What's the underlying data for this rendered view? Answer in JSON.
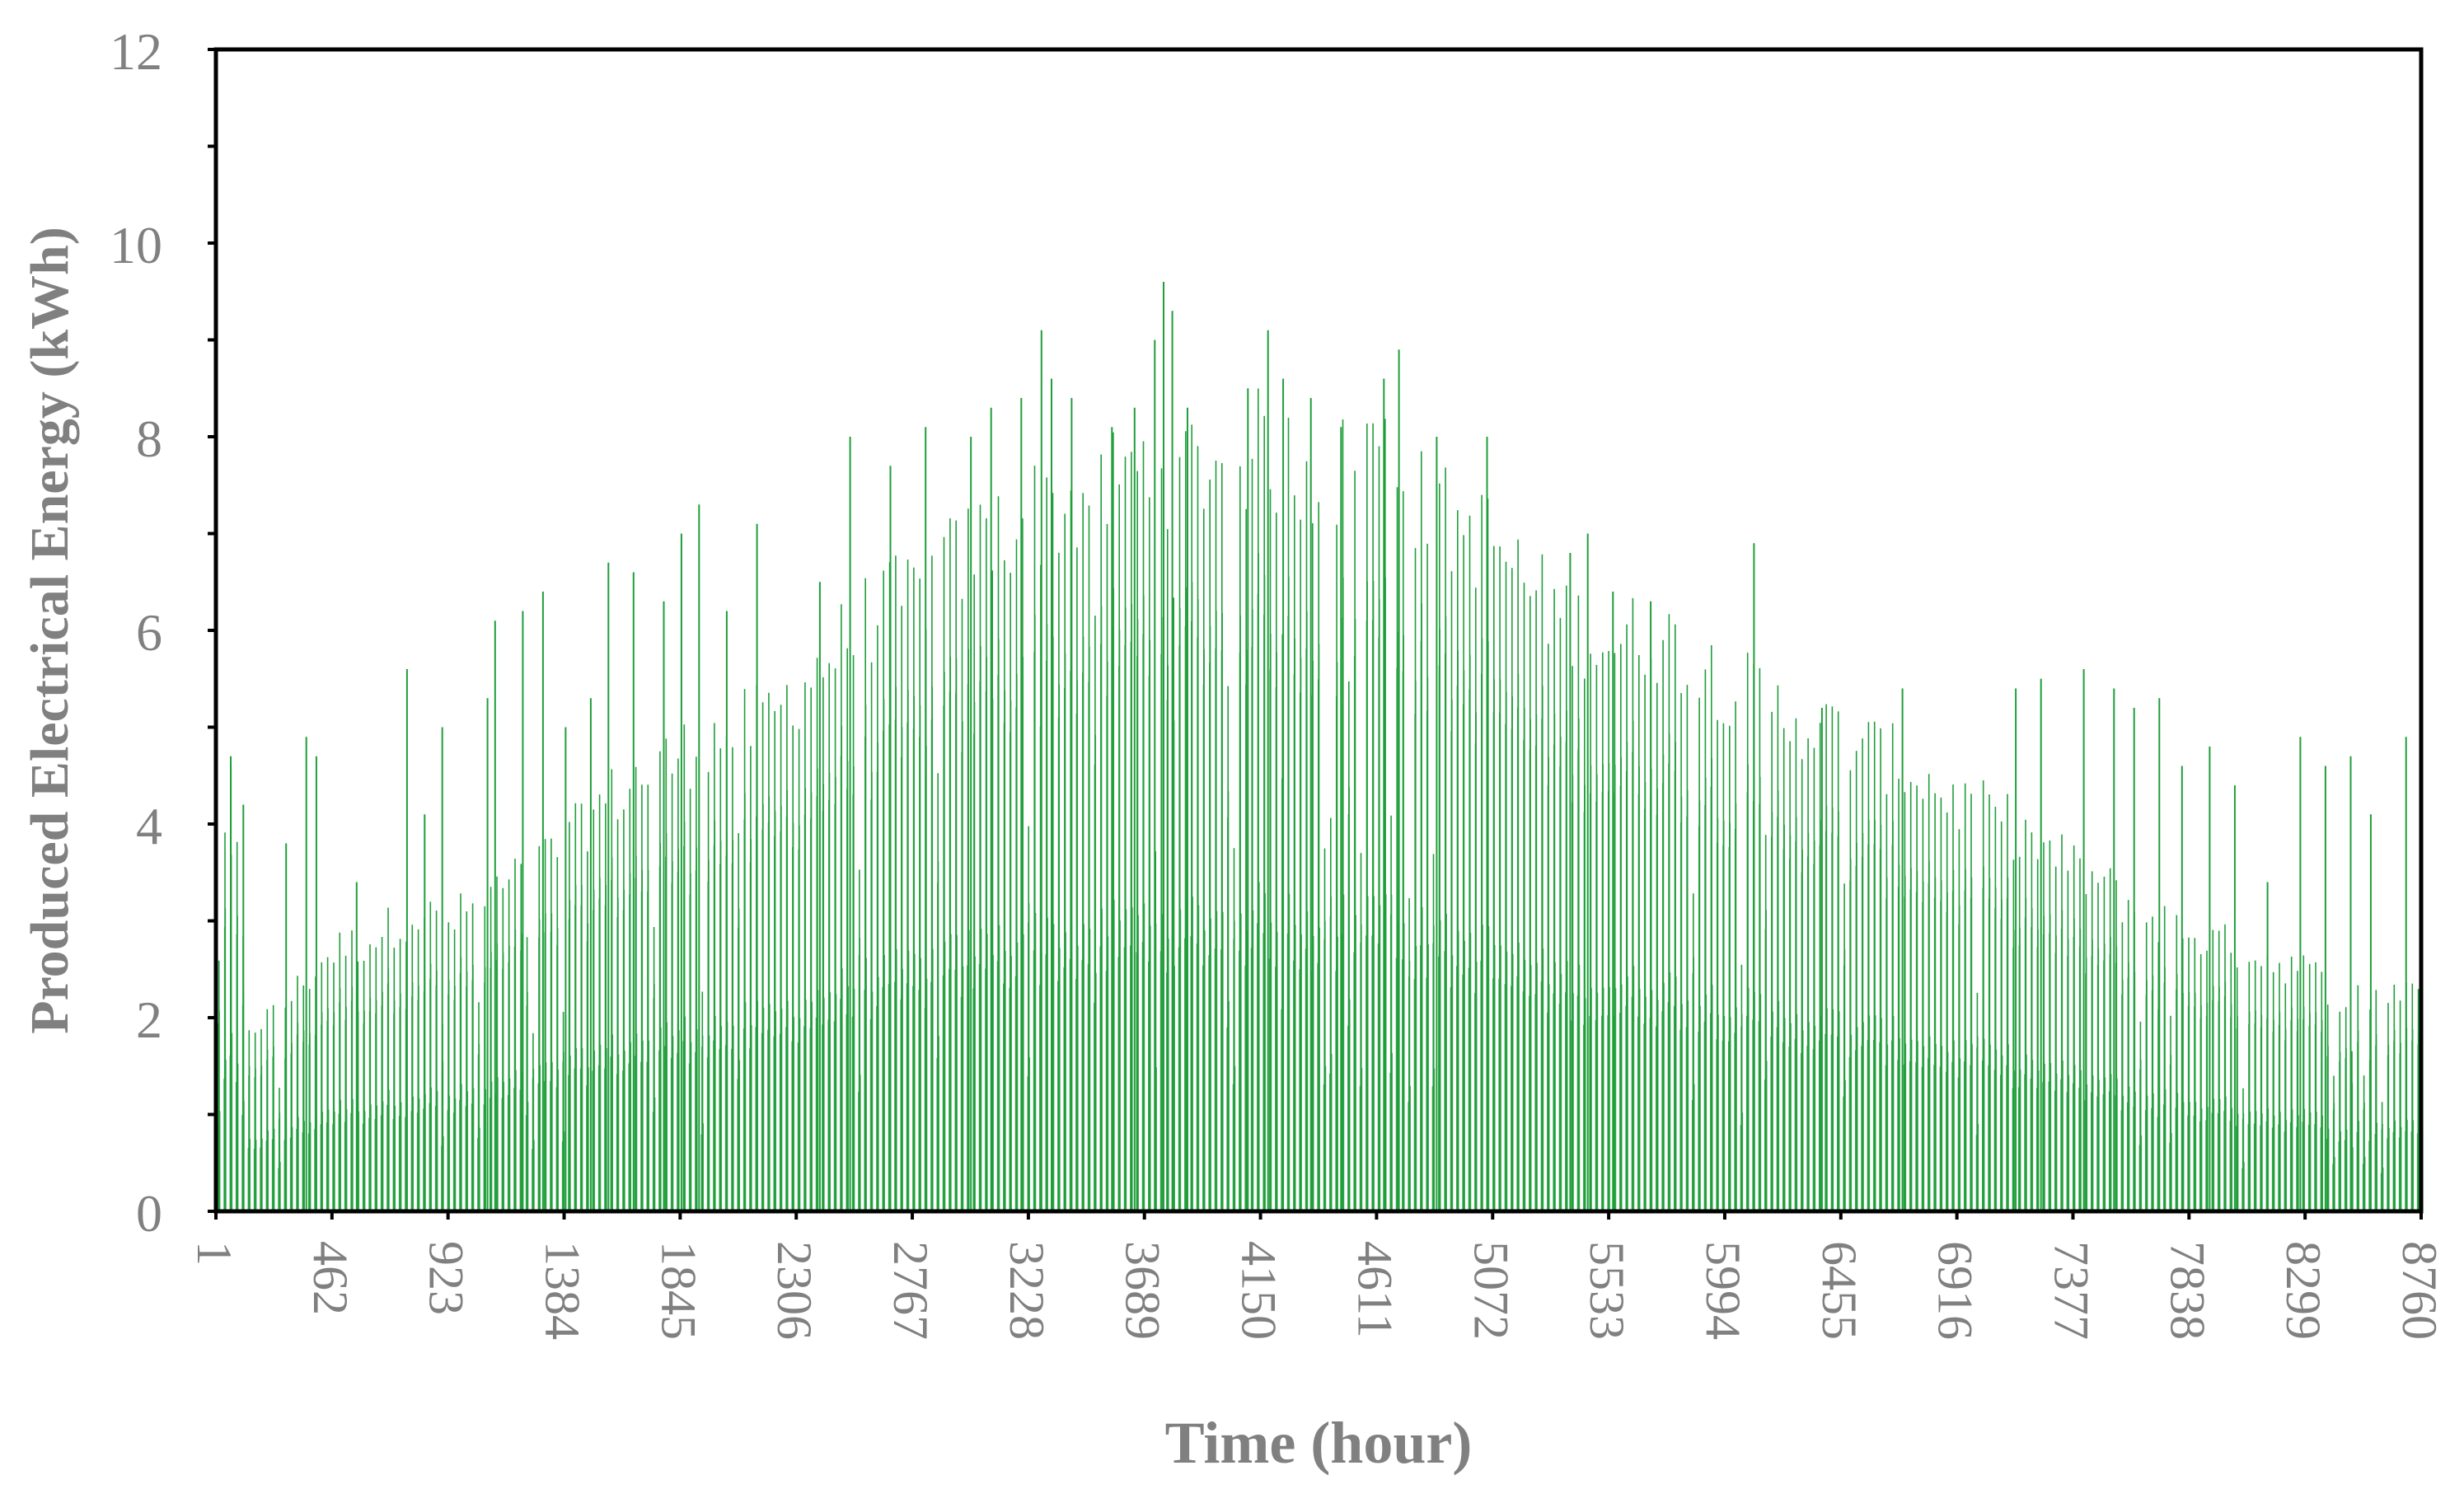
{
  "chart_data": {
    "type": "bar",
    "title": "",
    "xlabel": "Time (hour)",
    "ylabel": "Produced Electrical Energy (kWh)",
    "xlim": [
      1,
      8760
    ],
    "ylim": [
      0,
      12
    ],
    "x_ticks": [
      "1",
      "462",
      "923",
      "1384",
      "1845",
      "2306",
      "2767",
      "3228",
      "3689",
      "4150",
      "4611",
      "5072",
      "5533",
      "5994",
      "6455",
      "6916",
      "7377",
      "7838",
      "8299",
      "8760"
    ],
    "y_ticks": [
      "0",
      "2",
      "4",
      "6",
      "8",
      "10",
      "12"
    ],
    "grid": false,
    "legend": "none",
    "color": "#1f9e3a",
    "series": [
      {
        "daily_peak_envelope": {
          "x": [
            1,
            60,
            130,
            230,
            462,
            600,
            780,
            923,
            1050,
            1200,
            1384,
            1500,
            1700,
            1845,
            2000,
            2200,
            2306,
            2450,
            2600,
            2767,
            2900,
            3050,
            3228,
            3400,
            3550,
            3689,
            3850,
            4000,
            4150,
            4300,
            4450,
            4611,
            4750,
            4900,
            5072,
            5250,
            5400,
            5533,
            5700,
            5850,
            5994,
            6200,
            6455,
            6700,
            6916,
            7100,
            7250,
            7377,
            7500,
            7650,
            7838,
            8050,
            8299,
            8450,
            8600,
            8760
          ],
          "y": [
            2.3,
            4.7,
            2.0,
            2.1,
            2.8,
            2.9,
            3.2,
            3.1,
            3.3,
            3.6,
            3.9,
            4.3,
            4.7,
            4.9,
            5.1,
            5.3,
            5.6,
            6.0,
            6.4,
            6.6,
            6.9,
            7.2,
            7.5,
            7.6,
            7.8,
            8.0,
            8.0,
            8.1,
            8.2,
            8.0,
            7.9,
            8.3,
            7.7,
            7.4,
            7.2,
            6.6,
            6.3,
            6.1,
            6.2,
            6.0,
            5.7,
            5.4,
            5.1,
            4.8,
            4.4,
            4.2,
            3.9,
            3.7,
            3.5,
            3.2,
            3.0,
            2.8,
            2.6,
            2.3,
            2.3,
            2.5
          ]
        },
        "spikes": [
          {
            "x": 60,
            "y": 4.7
          },
          {
            "x": 110,
            "y": 4.2
          },
          {
            "x": 280,
            "y": 3.8
          },
          {
            "x": 360,
            "y": 4.9
          },
          {
            "x": 400,
            "y": 4.7
          },
          {
            "x": 560,
            "y": 3.4
          },
          {
            "x": 760,
            "y": 5.6
          },
          {
            "x": 830,
            "y": 4.1
          },
          {
            "x": 900,
            "y": 5.0
          },
          {
            "x": 1080,
            "y": 5.3
          },
          {
            "x": 1110,
            "y": 6.1
          },
          {
            "x": 1220,
            "y": 6.2
          },
          {
            "x": 1300,
            "y": 6.4
          },
          {
            "x": 1390,
            "y": 5.0
          },
          {
            "x": 1490,
            "y": 5.3
          },
          {
            "x": 1560,
            "y": 6.7
          },
          {
            "x": 1660,
            "y": 6.6
          },
          {
            "x": 1780,
            "y": 6.3
          },
          {
            "x": 1850,
            "y": 7.0
          },
          {
            "x": 1920,
            "y": 7.3
          },
          {
            "x": 2030,
            "y": 6.2
          },
          {
            "x": 2150,
            "y": 7.1
          },
          {
            "x": 2400,
            "y": 6.5
          },
          {
            "x": 2520,
            "y": 8.0
          },
          {
            "x": 2680,
            "y": 7.7
          },
          {
            "x": 2820,
            "y": 8.1
          },
          {
            "x": 3000,
            "y": 8.0
          },
          {
            "x": 3080,
            "y": 8.3
          },
          {
            "x": 3200,
            "y": 8.4
          },
          {
            "x": 3280,
            "y": 9.1
          },
          {
            "x": 3320,
            "y": 8.6
          },
          {
            "x": 3400,
            "y": 8.4
          },
          {
            "x": 3560,
            "y": 8.1
          },
          {
            "x": 3650,
            "y": 8.3
          },
          {
            "x": 3730,
            "y": 9.0
          },
          {
            "x": 3765,
            "y": 9.6
          },
          {
            "x": 3800,
            "y": 9.3
          },
          {
            "x": 3860,
            "y": 8.3
          },
          {
            "x": 4100,
            "y": 8.5
          },
          {
            "x": 4180,
            "y": 9.1
          },
          {
            "x": 4240,
            "y": 8.6
          },
          {
            "x": 4350,
            "y": 8.4
          },
          {
            "x": 4470,
            "y": 8.1
          },
          {
            "x": 4640,
            "y": 8.6
          },
          {
            "x": 4700,
            "y": 8.9
          },
          {
            "x": 4850,
            "y": 8.0
          },
          {
            "x": 5050,
            "y": 8.0
          },
          {
            "x": 5380,
            "y": 6.8
          },
          {
            "x": 5450,
            "y": 7.0
          },
          {
            "x": 5550,
            "y": 6.4
          },
          {
            "x": 5700,
            "y": 6.3
          },
          {
            "x": 6110,
            "y": 6.9
          },
          {
            "x": 6380,
            "y": 5.2
          },
          {
            "x": 6700,
            "y": 5.4
          },
          {
            "x": 7150,
            "y": 5.4
          },
          {
            "x": 7250,
            "y": 5.5
          },
          {
            "x": 7420,
            "y": 5.6
          },
          {
            "x": 7540,
            "y": 5.4
          },
          {
            "x": 7620,
            "y": 5.2
          },
          {
            "x": 7720,
            "y": 5.3
          },
          {
            "x": 7810,
            "y": 4.6
          },
          {
            "x": 7920,
            "y": 4.8
          },
          {
            "x": 8020,
            "y": 4.4
          },
          {
            "x": 8150,
            "y": 3.4
          },
          {
            "x": 8280,
            "y": 4.9
          },
          {
            "x": 8380,
            "y": 4.6
          },
          {
            "x": 8480,
            "y": 4.7
          },
          {
            "x": 8560,
            "y": 4.1
          },
          {
            "x": 8700,
            "y": 4.9
          }
        ]
      }
    ]
  }
}
